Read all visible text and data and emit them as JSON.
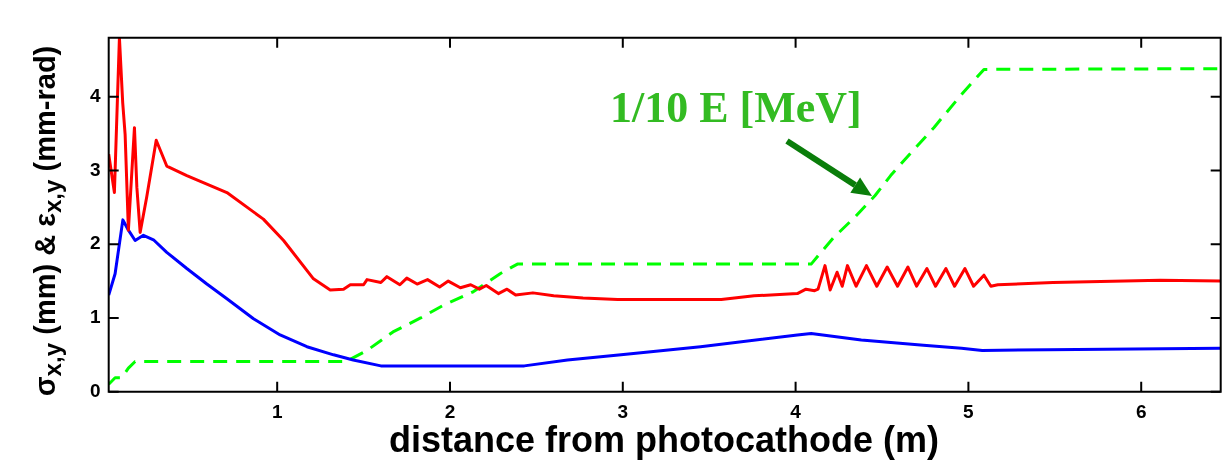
{
  "chart_data": {
    "type": "line",
    "xlabel": "distance from photocathode (m)",
    "ylabel": "σ$_{x,y}$ (mm) & ε$_{x,y}$ (mm-rad)",
    "xlim": [
      0.025,
      6.46
    ],
    "ylim": [
      0,
      4.8
    ],
    "xticks": [
      1,
      2,
      3,
      4,
      5,
      6
    ],
    "yticks": [
      0,
      1,
      2,
      3,
      4
    ],
    "grid": false,
    "legend": false,
    "marker": "none",
    "line_style": "solid",
    "annotations": [
      {
        "text": "1/10 E [MeV]",
        "x": 4.44,
        "y": 2.66
      }
    ],
    "series": [
      {
        "color": "#ff0000",
        "x": [
          0.025,
          0.058,
          0.087,
          0.106,
          0.12,
          0.139,
          0.174,
          0.188,
          0.207,
          0.245,
          0.3,
          0.361,
          0.477,
          0.709,
          0.92,
          1.037,
          1.21,
          1.307,
          1.384,
          1.423,
          1.5,
          1.52,
          1.6,
          1.635,
          1.71,
          1.75,
          1.81,
          1.87,
          1.94,
          1.99,
          2.06,
          2.12,
          2.17,
          2.21,
          2.28,
          2.33,
          2.38,
          2.48,
          2.6,
          2.77,
          2.97,
          3.57,
          3.76,
          4.01,
          4.06,
          4.11,
          4.13,
          4.17,
          4.2,
          4.24,
          4.27,
          4.3,
          4.35,
          4.41,
          4.47,
          4.53,
          4.59,
          4.65,
          4.7,
          4.76,
          4.81,
          4.87,
          4.92,
          4.98,
          5.03,
          5.09,
          5.13,
          5.17,
          5.49,
          6.11,
          6.46
        ],
        "values": [
          3.22,
          2.7,
          4.8,
          3.92,
          3.49,
          2.19,
          3.58,
          2.77,
          2.16,
          2.64,
          3.41,
          3.06,
          2.93,
          2.7,
          2.34,
          2.05,
          1.53,
          1.38,
          1.39,
          1.45,
          1.45,
          1.52,
          1.48,
          1.56,
          1.45,
          1.54,
          1.46,
          1.52,
          1.42,
          1.5,
          1.41,
          1.45,
          1.39,
          1.44,
          1.33,
          1.39,
          1.31,
          1.34,
          1.3,
          1.27,
          1.25,
          1.25,
          1.3,
          1.33,
          1.39,
          1.37,
          1.39,
          1.71,
          1.38,
          1.62,
          1.43,
          1.71,
          1.43,
          1.71,
          1.43,
          1.69,
          1.43,
          1.69,
          1.43,
          1.67,
          1.43,
          1.67,
          1.43,
          1.67,
          1.43,
          1.58,
          1.43,
          1.45,
          1.48,
          1.51,
          1.5
        ]
      },
      {
        "color": "#0000ff",
        "x": [
          0.025,
          0.062,
          0.107,
          0.139,
          0.178,
          0.226,
          0.284,
          0.361,
          0.477,
          0.593,
          0.709,
          0.863,
          1.017,
          1.172,
          1.326,
          1.44,
          1.6,
          1.83,
          2.43,
          2.68,
          2.99,
          3.45,
          4.01,
          4.09,
          4.38,
          4.74,
          4.96,
          5.08,
          5.46,
          6.46
        ],
        "values": [
          1.31,
          1.6,
          2.33,
          2.19,
          2.05,
          2.12,
          2.06,
          1.89,
          1.67,
          1.46,
          1.26,
          0.99,
          0.77,
          0.61,
          0.5,
          0.43,
          0.35,
          0.35,
          0.35,
          0.43,
          0.5,
          0.61,
          0.77,
          0.79,
          0.7,
          0.63,
          0.59,
          0.56,
          0.57,
          0.59
        ]
      },
      {
        "color": "#00ff00",
        "line_style": "dashed",
        "x": [
          0.025,
          0.062,
          0.1,
          0.139,
          0.178,
          1.4,
          1.52,
          1.67,
          1.83,
          1.96,
          2.13,
          2.29,
          2.39,
          4.09,
          4.14,
          4.22,
          4.34,
          4.46,
          4.55,
          4.66,
          4.8,
          4.96,
          5.09,
          6.46
        ],
        "values": [
          0.1,
          0.19,
          0.19,
          0.32,
          0.41,
          0.41,
          0.56,
          0.81,
          1.0,
          1.17,
          1.35,
          1.6,
          1.73,
          1.73,
          1.87,
          2.09,
          2.36,
          2.66,
          2.93,
          3.22,
          3.58,
          4.03,
          4.37,
          4.38
        ]
      }
    ]
  }
}
